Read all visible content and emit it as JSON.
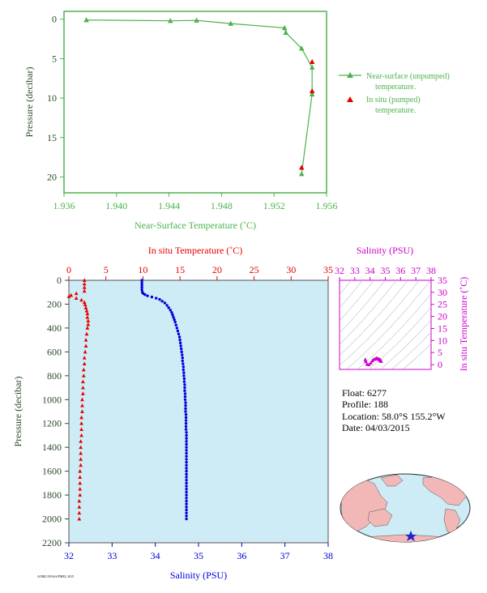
{
  "colors": {
    "green": "#4cb34c",
    "red": "#e60000",
    "blue": "#0000dd",
    "magenta": "#cc00cc",
    "panel_bg": "#cdecf5",
    "land": "#f2b8b8",
    "ocean": "#cdecf5"
  },
  "info": {
    "float": "Float:  6277",
    "profile": "Profile:  188",
    "location": "Location:  58.0°S  155.2°W",
    "date": "Date:  04/03/2015"
  },
  "footer_code": "AOML/NOAA/PMEL 2015",
  "chart_data": [
    {
      "type": "line",
      "xlabel": "Near-Surface Temperature (˚C)",
      "ylabel": "Pressure (decibar)",
      "xlim": [
        1.936,
        1.956
      ],
      "ylim": [
        22,
        -1
      ],
      "xticks": [
        "1.936",
        "1.940",
        "1.944",
        "1.948",
        "1.952",
        "1.956"
      ],
      "yticks": [
        "0",
        "5",
        "10",
        "15",
        "20"
      ],
      "legend_position": "right",
      "series": [
        {
          "name": "Near-surface (unpumped) temperature.",
          "color": "#4cb34c",
          "marker": "triangle",
          "line": true,
          "points": [
            [
              1.9377,
              0.1
            ],
            [
              1.9441,
              0.2
            ],
            [
              1.9461,
              0.15
            ],
            [
              1.9487,
              0.55
            ],
            [
              1.9528,
              1.1
            ],
            [
              1.9529,
              1.7
            ],
            [
              1.9541,
              3.7
            ],
            [
              1.9549,
              6.1
            ],
            [
              1.9549,
              9.5
            ],
            [
              1.9541,
              19.6
            ]
          ]
        },
        {
          "name": "In situ (pumped) temperature.",
          "color": "#e60000",
          "marker": "triangle",
          "line": false,
          "points": [
            [
              1.9549,
              5.4
            ],
            [
              1.9549,
              9.1
            ],
            [
              1.9541,
              18.8
            ]
          ]
        }
      ]
    },
    {
      "type": "scatter",
      "title_top": "In situ Temperature (˚C)",
      "xlabel": "Salinity (PSU)",
      "ylabel": "Pressure (decibar)",
      "temperature_axis": {
        "range": [
          0,
          35
        ],
        "ticks": [
          "0",
          "5",
          "10",
          "15",
          "20",
          "25",
          "30",
          "35"
        ]
      },
      "salinity_axis": {
        "range": [
          32,
          38
        ],
        "ticks": [
          "32",
          "33",
          "34",
          "35",
          "36",
          "37",
          "38"
        ]
      },
      "ylim": [
        2200,
        0
      ],
      "yticks": [
        "0",
        "200",
        "400",
        "600",
        "800",
        "1000",
        "1200",
        "1400",
        "1600",
        "1800",
        "2000",
        "2200"
      ],
      "temperature_profile": {
        "color": "#e60000",
        "marker": "triangle",
        "points": [
          [
            2.1,
            0
          ],
          [
            2.1,
            30
          ],
          [
            2.1,
            60
          ],
          [
            2.1,
            90
          ],
          [
            1.0,
            110
          ],
          [
            0.3,
            125
          ],
          [
            0.0,
            135
          ],
          [
            1.0,
            150
          ],
          [
            1.7,
            165
          ],
          [
            2.1,
            185
          ],
          [
            2.2,
            205
          ],
          [
            2.3,
            230
          ],
          [
            2.4,
            255
          ],
          [
            2.5,
            280
          ],
          [
            2.5,
            310
          ],
          [
            2.6,
            340
          ],
          [
            2.6,
            370
          ],
          [
            2.5,
            400
          ],
          [
            2.4,
            450
          ],
          [
            2.3,
            500
          ],
          [
            2.3,
            550
          ],
          [
            2.2,
            600
          ],
          [
            2.1,
            650
          ],
          [
            2.1,
            700
          ],
          [
            2.0,
            750
          ],
          [
            2.0,
            800
          ],
          [
            1.9,
            850
          ],
          [
            1.9,
            900
          ],
          [
            1.9,
            950
          ],
          [
            1.8,
            1000
          ],
          [
            1.8,
            1050
          ],
          [
            1.8,
            1100
          ],
          [
            1.7,
            1150
          ],
          [
            1.7,
            1200
          ],
          [
            1.7,
            1250
          ],
          [
            1.7,
            1300
          ],
          [
            1.6,
            1350
          ],
          [
            1.6,
            1400
          ],
          [
            1.6,
            1450
          ],
          [
            1.6,
            1500
          ],
          [
            1.6,
            1550
          ],
          [
            1.5,
            1600
          ],
          [
            1.5,
            1650
          ],
          [
            1.5,
            1700
          ],
          [
            1.5,
            1750
          ],
          [
            1.5,
            1800
          ],
          [
            1.4,
            1850
          ],
          [
            1.4,
            1900
          ],
          [
            1.4,
            1950
          ],
          [
            1.4,
            2000
          ]
        ]
      },
      "salinity_profile": {
        "color": "#0000dd",
        "marker": "dot",
        "points": [
          [
            33.69,
            0
          ],
          [
            33.69,
            20
          ],
          [
            33.69,
            40
          ],
          [
            33.69,
            60
          ],
          [
            33.69,
            80
          ],
          [
            33.7,
            100
          ],
          [
            33.72,
            110
          ],
          [
            33.76,
            120
          ],
          [
            33.82,
            130
          ],
          [
            33.92,
            140
          ],
          [
            34.02,
            150
          ],
          [
            34.1,
            160
          ],
          [
            34.16,
            175
          ],
          [
            34.22,
            190
          ],
          [
            34.27,
            210
          ],
          [
            34.31,
            230
          ],
          [
            34.35,
            250
          ],
          [
            34.38,
            270
          ],
          [
            34.4,
            290
          ],
          [
            34.42,
            310
          ],
          [
            34.44,
            330
          ],
          [
            34.46,
            350
          ],
          [
            34.48,
            375
          ],
          [
            34.5,
            400
          ],
          [
            34.52,
            425
          ],
          [
            34.54,
            450
          ],
          [
            34.56,
            475
          ],
          [
            34.57,
            500
          ],
          [
            34.58,
            525
          ],
          [
            34.59,
            550
          ],
          [
            34.6,
            575
          ],
          [
            34.61,
            600
          ],
          [
            34.62,
            625
          ],
          [
            34.63,
            650
          ],
          [
            34.63,
            675
          ],
          [
            34.64,
            700
          ],
          [
            34.65,
            725
          ],
          [
            34.65,
            750
          ],
          [
            34.66,
            775
          ],
          [
            34.66,
            800
          ],
          [
            34.67,
            825
          ],
          [
            34.67,
            850
          ],
          [
            34.68,
            875
          ],
          [
            34.68,
            900
          ],
          [
            34.68,
            925
          ],
          [
            34.69,
            950
          ],
          [
            34.69,
            975
          ],
          [
            34.69,
            1000
          ],
          [
            34.7,
            1025
          ],
          [
            34.7,
            1050
          ],
          [
            34.7,
            1075
          ],
          [
            34.7,
            1100
          ],
          [
            34.71,
            1125
          ],
          [
            34.71,
            1150
          ],
          [
            34.71,
            1175
          ],
          [
            34.71,
            1200
          ],
          [
            34.71,
            1225
          ],
          [
            34.71,
            1250
          ],
          [
            34.72,
            1275
          ],
          [
            34.72,
            1300
          ],
          [
            34.72,
            1325
          ],
          [
            34.72,
            1350
          ],
          [
            34.72,
            1375
          ],
          [
            34.72,
            1400
          ],
          [
            34.72,
            1425
          ],
          [
            34.72,
            1450
          ],
          [
            34.72,
            1475
          ],
          [
            34.72,
            1500
          ],
          [
            34.72,
            1525
          ],
          [
            34.72,
            1550
          ],
          [
            34.72,
            1575
          ],
          [
            34.72,
            1600
          ],
          [
            34.72,
            1625
          ],
          [
            34.72,
            1650
          ],
          [
            34.72,
            1675
          ],
          [
            34.72,
            1700
          ],
          [
            34.72,
            1725
          ],
          [
            34.72,
            1750
          ],
          [
            34.72,
            1775
          ],
          [
            34.72,
            1800
          ],
          [
            34.72,
            1825
          ],
          [
            34.72,
            1850
          ],
          [
            34.72,
            1875
          ],
          [
            34.72,
            1900
          ],
          [
            34.72,
            1925
          ],
          [
            34.72,
            1950
          ],
          [
            34.72,
            1975
          ],
          [
            34.72,
            2000
          ]
        ]
      }
    },
    {
      "type": "scatter",
      "xlabel": "Salinity (PSU)",
      "ylabel": "In situ Temperature (˚C)",
      "xlim": [
        32,
        38
      ],
      "ylim": [
        -2,
        35
      ],
      "xticks": [
        "32",
        "33",
        "34",
        "35",
        "36",
        "37",
        "38"
      ],
      "yticks": [
        "0",
        "5",
        "10",
        "15",
        "20",
        "25",
        "30",
        "35"
      ],
      "color": "#cc00cc",
      "points": [
        [
          33.69,
          2.1
        ],
        [
          33.72,
          1.3
        ],
        [
          33.8,
          0.2
        ],
        [
          33.92,
          0.0
        ],
        [
          34.05,
          0.7
        ],
        [
          34.15,
          1.6
        ],
        [
          34.25,
          2.2
        ],
        [
          34.35,
          2.4
        ],
        [
          34.42,
          2.6
        ],
        [
          34.48,
          2.5
        ],
        [
          34.55,
          2.3
        ],
        [
          34.6,
          2.2
        ],
        [
          34.65,
          2.0
        ],
        [
          34.68,
          1.8
        ],
        [
          34.7,
          1.7
        ],
        [
          34.72,
          1.5
        ],
        [
          34.72,
          1.4
        ]
      ]
    }
  ]
}
